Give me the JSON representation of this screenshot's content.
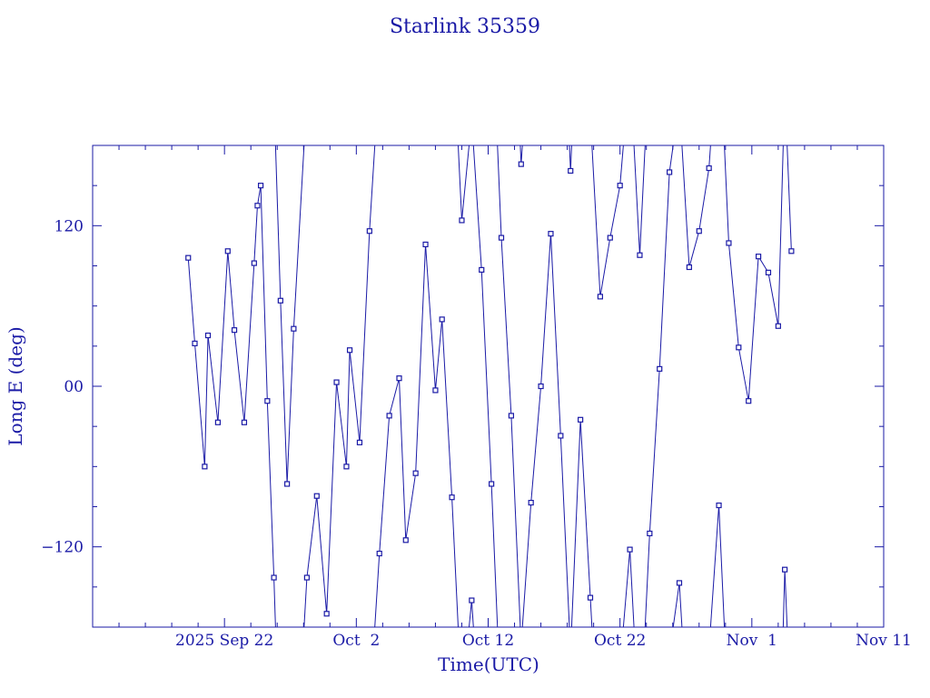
{
  "chart_data": {
    "type": "line",
    "title": "Starlink 35359",
    "xlabel": "Time(UTC)",
    "ylabel": "Long E (deg)",
    "x_tick_labels": [
      "2025 Sep 22",
      "Oct  2",
      "Oct 12",
      "Oct 22",
      "Nov  1",
      "Nov 11"
    ],
    "y_tick_labels": [
      "−120",
      "00",
      "120"
    ],
    "xlim": [
      "2025-09-12",
      "2025-11-11"
    ],
    "ylim": [
      -180,
      180
    ],
    "grid": false,
    "line_color": "#1a1aa6",
    "series": [
      {
        "x": [
          "2025-09-19T06:00",
          "2025-09-19T18:00",
          "2025-09-20T12:00",
          "2025-09-20T18:00",
          "2025-09-21T12:00",
          "2025-09-22T06:00",
          "2025-09-22T18:00",
          "2025-09-23T12:00",
          "2025-09-24T06:00",
          "2025-09-24T12:00",
          "2025-09-24T18:00",
          "2025-09-25T06:00",
          "2025-09-25T18:00",
          "2025-09-26T06:00",
          "2025-09-26T18:00",
          "2025-09-27T06:00",
          "2025-09-28T06:00",
          "2025-09-29T00:00",
          "2025-09-29T18:00",
          "2025-09-30T12:00",
          "2025-10-01T06:00",
          "2025-10-01T12:00",
          "2025-10-02T06:00",
          "2025-10-03T00:00",
          "2025-10-03T18:00",
          "2025-10-04T12:00",
          "2025-10-05T06:00",
          "2025-10-05T18:00",
          "2025-10-06T12:00",
          "2025-10-07T06:00",
          "2025-10-08T00:00",
          "2025-10-08T12:00",
          "2025-10-09T06:00",
          "2025-10-10T00:00",
          "2025-10-10T18:00",
          "2025-10-11T12:00",
          "2025-10-12T06:00",
          "2025-10-13T00:00",
          "2025-10-13T18:00",
          "2025-10-14T12:00",
          "2025-10-15T06:00",
          "2025-10-16T00:00",
          "2025-10-16T18:00",
          "2025-10-17T12:00",
          "2025-10-18T06:00",
          "2025-10-19T00:00",
          "2025-10-19T18:00",
          "2025-10-20T12:00",
          "2025-10-21T06:00",
          "2025-10-22T00:00",
          "2025-10-22T18:00",
          "2025-10-23T12:00",
          "2025-10-24T06:00",
          "2025-10-25T00:00",
          "2025-10-25T18:00",
          "2025-10-26T12:00",
          "2025-10-27T06:00",
          "2025-10-28T00:00",
          "2025-10-28T18:00",
          "2025-10-29T12:00",
          "2025-10-30T06:00",
          "2025-10-31T00:00",
          "2025-10-31T18:00",
          "2025-11-01T12:00",
          "2025-11-02T06:00",
          "2025-11-03T00:00",
          "2025-11-03T12:00",
          "2025-11-04T00:00"
        ],
        "y": [
          96,
          32,
          -60,
          38,
          -27,
          101,
          42,
          -27,
          92,
          135,
          150,
          -11,
          -143,
          64,
          -73,
          43,
          -143,
          -82,
          -170,
          3,
          -60,
          27,
          -42,
          116,
          -125,
          -22,
          6,
          -115,
          -65,
          106,
          -3,
          50,
          -83,
          124,
          -160,
          87,
          -73,
          111,
          -22,
          166,
          -87,
          0,
          114,
          -37,
          161,
          -25,
          -158,
          67,
          111,
          150,
          -122,
          98,
          -110,
          13,
          160,
          -147,
          89,
          116,
          163,
          -89,
          107,
          29,
          -11,
          97,
          85,
          45,
          -137,
          101
        ]
      }
    ]
  }
}
